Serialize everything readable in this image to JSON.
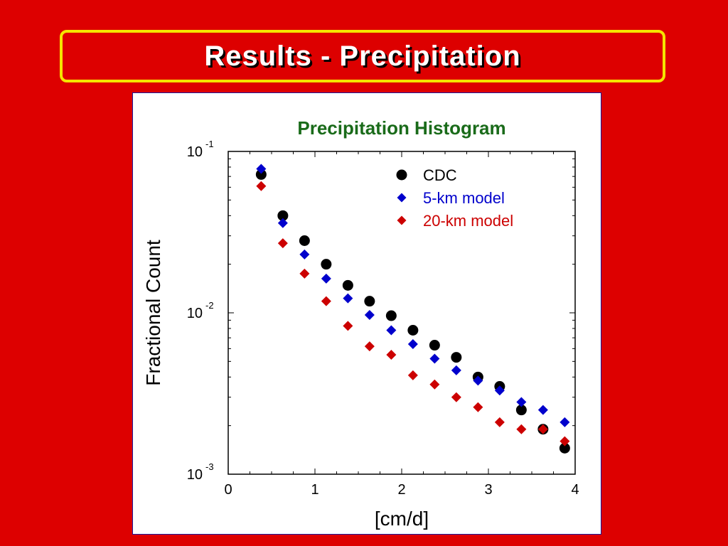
{
  "slide": {
    "title": "Results - Precipitation",
    "colors": {
      "background": "#dd0000",
      "title_border": "#f5e400",
      "title_text": "#ffffff"
    }
  },
  "chart_data": {
    "type": "scatter",
    "title": "Precipitation Histogram",
    "xlabel": "[cm/d]",
    "ylabel": "Fractional Count",
    "xlim": [
      0,
      4
    ],
    "ylim": [
      0.001,
      0.1
    ],
    "yscale": "log",
    "x_ticks": [
      "0",
      "1",
      "2",
      "3",
      "4"
    ],
    "y_ticks": [
      {
        "base": "10",
        "exp": "-1",
        "value": 0.1
      },
      {
        "base": "10",
        "exp": "-2",
        "value": 0.01
      },
      {
        "base": "10",
        "exp": "-3",
        "value": 0.001
      }
    ],
    "legend_position": "top-right",
    "series": [
      {
        "name": "CDC",
        "marker": "circle",
        "color": "#000000",
        "x": [
          0.38,
          0.63,
          0.88,
          1.13,
          1.38,
          1.63,
          1.88,
          2.13,
          2.38,
          2.63,
          2.88,
          3.13,
          3.38,
          3.63,
          3.88
        ],
        "y": [
          0.072,
          0.04,
          0.028,
          0.02,
          0.0148,
          0.0118,
          0.0096,
          0.0078,
          0.0063,
          0.0053,
          0.004,
          0.0035,
          0.0025,
          0.0019,
          0.00145
        ]
      },
      {
        "name": "5-km model",
        "marker": "diamond",
        "color": "#0000cc",
        "x": [
          0.38,
          0.63,
          0.88,
          1.13,
          1.38,
          1.63,
          1.88,
          2.13,
          2.38,
          2.63,
          2.88,
          3.13,
          3.38,
          3.63,
          3.88
        ],
        "y": [
          0.078,
          0.036,
          0.023,
          0.0163,
          0.0123,
          0.0097,
          0.0078,
          0.0064,
          0.0052,
          0.0044,
          0.0038,
          0.0033,
          0.0028,
          0.0025,
          0.0021
        ]
      },
      {
        "name": "20-km model",
        "marker": "diamond",
        "color": "#cc0000",
        "x": [
          0.38,
          0.63,
          0.88,
          1.13,
          1.38,
          1.63,
          1.88,
          2.13,
          2.38,
          2.63,
          2.88,
          3.13,
          3.38,
          3.63,
          3.88
        ],
        "y": [
          0.061,
          0.027,
          0.0175,
          0.0118,
          0.0083,
          0.0062,
          0.0055,
          0.0041,
          0.0036,
          0.003,
          0.0026,
          0.0021,
          0.0019,
          0.0019,
          0.0016
        ]
      }
    ]
  }
}
